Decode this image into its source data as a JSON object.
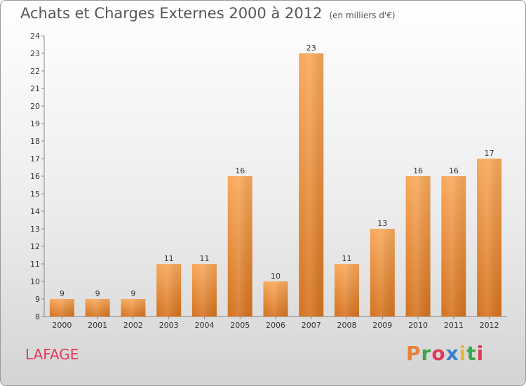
{
  "title": "Achats et Charges Externes 2000 à 2012",
  "subtitle": "(en milliers d'€)",
  "commune": "LAFAGE",
  "brand": {
    "letters": [
      "P",
      "r",
      "o",
      "x",
      "i",
      "t",
      "i"
    ],
    "colors": [
      "#e8823a",
      "#3ea648",
      "#e03a5a",
      "#3d7fcc",
      "#f0b433",
      "#3ea648",
      "#e03a5a"
    ]
  },
  "chart_data": {
    "type": "bar",
    "categories": [
      "2000",
      "2001",
      "2002",
      "2003",
      "2004",
      "2005",
      "2006",
      "2007",
      "2008",
      "2009",
      "2010",
      "2011",
      "2012"
    ],
    "values": [
      9,
      9,
      9,
      11,
      11,
      16,
      10,
      23,
      11,
      13,
      16,
      16,
      17
    ],
    "ylim": [
      8,
      24
    ],
    "yticks": [
      8,
      9,
      10,
      11,
      12,
      13,
      14,
      15,
      16,
      17,
      18,
      19,
      20,
      21,
      22,
      23,
      24
    ],
    "bar_color": "#f08c32",
    "grid": false
  }
}
